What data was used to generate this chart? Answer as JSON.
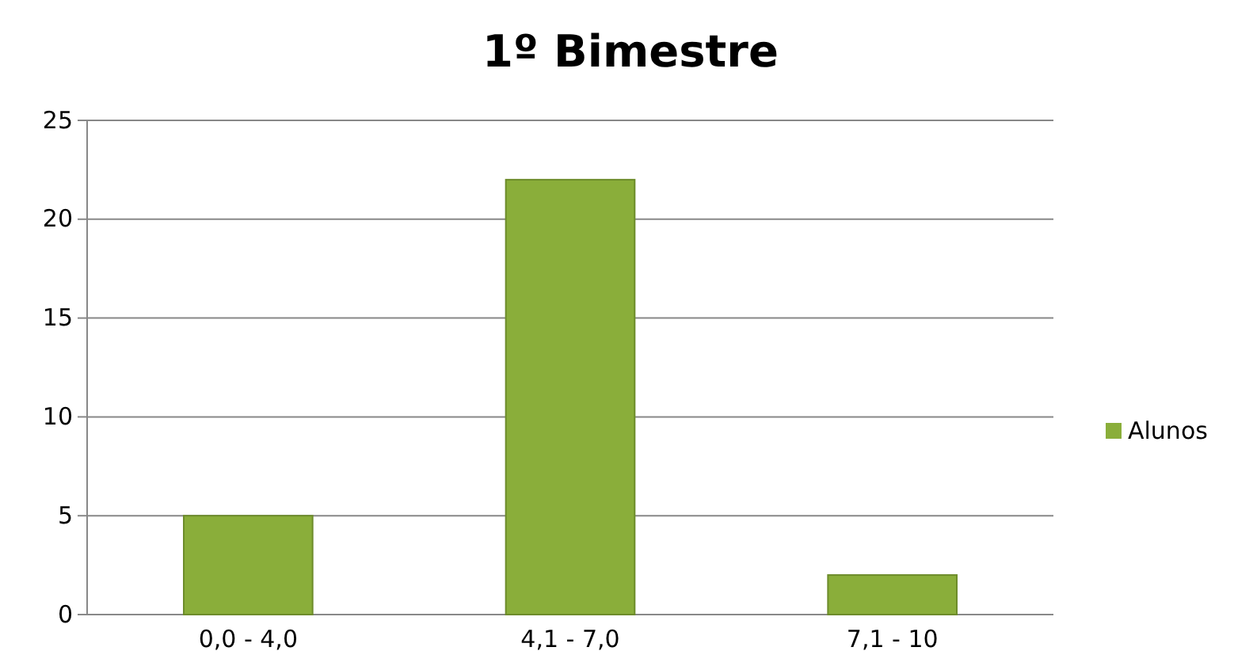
{
  "chart_data": {
    "type": "bar",
    "title": "1º Bimestre",
    "categories": [
      "0,0 - 4,0",
      "4,1 - 7,0",
      "7,1 - 10"
    ],
    "series": [
      {
        "name": "Alunos",
        "color": "#8aae3a",
        "values": [
          5,
          22,
          2
        ]
      }
    ],
    "ylim": [
      0,
      25
    ],
    "yticks": [
      0,
      5,
      10,
      15,
      20,
      25
    ],
    "grid": "y",
    "legend": "right"
  }
}
